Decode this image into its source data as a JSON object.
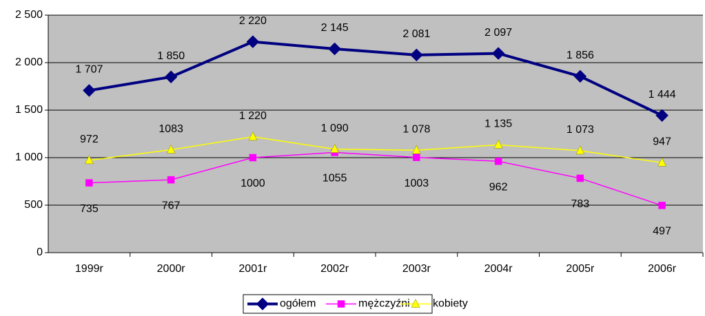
{
  "chart_data": {
    "type": "line",
    "categories": [
      "1999r",
      "2000r",
      "2001r",
      "2002r",
      "2003r",
      "2004r",
      "2005r",
      "2006r"
    ],
    "series": [
      {
        "name": "ogółem",
        "color": "#000080",
        "marker": "diamond",
        "values": [
          1707,
          1850,
          2220,
          2145,
          2081,
          2097,
          1856,
          1444
        ],
        "value_labels": [
          "1 707",
          "1 850",
          "2 220",
          "2 145",
          "2 081",
          "2 097",
          "1 856",
          "1 444"
        ]
      },
      {
        "name": "mężczyźni",
        "color": "#ff00ff",
        "marker": "square",
        "values": [
          735,
          767,
          1000,
          1055,
          1003,
          962,
          783,
          497
        ]
      },
      {
        "name": "kobiety",
        "color": "#ffff00",
        "marker": "triangle",
        "values": [
          972,
          1083,
          1220,
          1090,
          1078,
          1135,
          1073,
          947
        ],
        "value_labels": [
          "972",
          "1083",
          "1 220",
          "1 090",
          "1 078",
          "1 135",
          "1 073",
          "947"
        ]
      }
    ],
    "ylim": [
      0,
      2500
    ],
    "yticks": [
      0,
      500,
      {
        "value": 1000,
        "label": "1 000"
      },
      {
        "value": 1500,
        "label": "1 500"
      },
      {
        "value": 2000,
        "label": "2 000"
      },
      {
        "value": 2500,
        "label": "2 500"
      }
    ],
    "grid": true,
    "legend": "bottom"
  }
}
